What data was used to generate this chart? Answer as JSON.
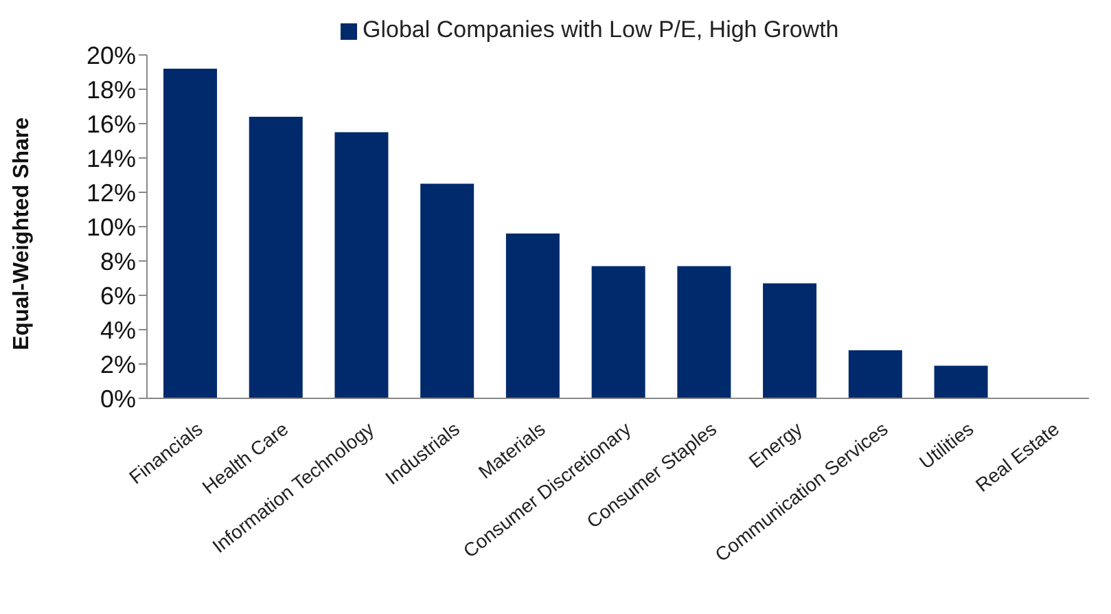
{
  "chart_data": {
    "type": "bar",
    "ylabel": "Equal-Weighted Share",
    "categories": [
      "Financials",
      "Health Care",
      "Information Technology",
      "Industrials",
      "Materials",
      "Consumer Discretionary",
      "Consumer Staples",
      "Energy",
      "Communication Services",
      "Utilities",
      "Real Estate"
    ],
    "series": [
      {
        "name": "Global Companies with Low P/E, High Growth",
        "color": "#002a6c",
        "values": [
          19.2,
          16.4,
          15.5,
          12.5,
          9.6,
          7.7,
          7.7,
          6.7,
          2.8,
          1.9,
          0
        ]
      }
    ],
    "ylim": [
      0,
      20
    ],
    "yticks": [
      {
        "value": 0,
        "label": "0%"
      },
      {
        "value": 2,
        "label": "2%"
      },
      {
        "value": 4,
        "label": "4%"
      },
      {
        "value": 6,
        "label": "6%"
      },
      {
        "value": 8,
        "label": "8%"
      },
      {
        "value": 10,
        "label": "10%"
      },
      {
        "value": 12,
        "label": "12%"
      },
      {
        "value": 14,
        "label": "14%"
      },
      {
        "value": 16,
        "label": "16%"
      },
      {
        "value": 18,
        "label": "18%"
      },
      {
        "value": 20,
        "label": "20%"
      }
    ],
    "grid": false,
    "legend": "top"
  }
}
